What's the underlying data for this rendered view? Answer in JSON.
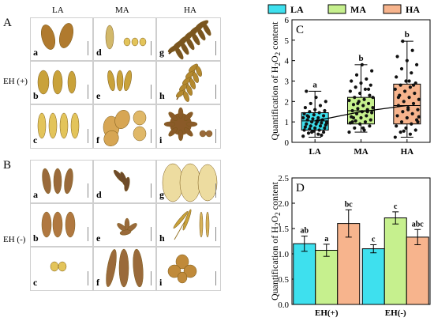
{
  "panelA": {
    "letter": "A",
    "cols": [
      "LA",
      "MA",
      "HA"
    ],
    "rowlabel": "EH (+)",
    "cells": [
      "a",
      "d",
      "g",
      "b",
      "e",
      "h",
      "c",
      "f",
      "i"
    ]
  },
  "panelB": {
    "letter": "B",
    "rowlabel": "EH (-)",
    "cells": [
      "a",
      "d",
      "g",
      "b",
      "e",
      "h",
      "c",
      "f",
      "i"
    ]
  },
  "chart_data": [
    {
      "panel": "C",
      "type": "box",
      "categories": [
        "LA",
        "MA",
        "HA"
      ],
      "ylabel": "Quantification of H2O2 content",
      "ylabel_parts": {
        "a": "Quantification of H",
        "s1": "2",
        "b": "O",
        "s2": "2",
        "c": " content"
      },
      "ylim": [
        0,
        6
      ],
      "yticks": [
        0,
        1,
        2,
        3,
        4,
        5,
        6
      ],
      "legend": [
        {
          "name": "LA",
          "color": "#3ee0ee"
        },
        {
          "name": "MA",
          "color": "#c6f08e"
        },
        {
          "name": "HA",
          "color": "#f7b48d"
        }
      ],
      "boxes": [
        {
          "q1": 0.6,
          "median": 1.05,
          "q3": 1.45,
          "whisker_low": 0.25,
          "whisker_high": 2.5,
          "mean": 1.05,
          "letter": "a"
        },
        {
          "q1": 0.9,
          "median": 1.55,
          "q3": 2.2,
          "whisker_low": 0.5,
          "whisker_high": 3.8,
          "mean": 1.5,
          "letter": "b"
        },
        {
          "q1": 0.9,
          "median": 1.8,
          "q3": 2.85,
          "whisker_low": 0.25,
          "whisker_high": 4.95,
          "mean": 1.8,
          "letter": "b"
        }
      ],
      "points": {
        "LA": [
          0.3,
          0.4,
          0.45,
          0.5,
          0.55,
          0.6,
          0.6,
          0.65,
          0.7,
          0.7,
          0.75,
          0.8,
          0.8,
          0.85,
          0.9,
          0.9,
          0.95,
          1.0,
          1.0,
          1.05,
          1.1,
          1.1,
          1.15,
          1.2,
          1.2,
          1.25,
          1.3,
          1.35,
          1.4,
          1.45,
          1.5,
          1.55,
          1.6,
          1.7,
          1.8,
          1.9,
          2.0,
          2.2,
          2.5,
          0.35,
          0.5,
          0.95,
          1.0,
          1.3
        ],
        "MA": [
          0.5,
          0.6,
          0.7,
          0.8,
          0.9,
          0.95,
          1.0,
          1.05,
          1.1,
          1.2,
          1.25,
          1.3,
          1.4,
          1.45,
          1.5,
          1.55,
          1.6,
          1.65,
          1.7,
          1.8,
          1.85,
          1.9,
          2.0,
          2.05,
          2.1,
          2.2,
          2.3,
          2.4,
          2.5,
          2.6,
          2.7,
          2.8,
          2.9,
          3.0,
          3.1,
          3.3,
          3.5,
          3.8,
          1.0,
          1.5,
          1.9,
          2.2,
          0.7,
          1.2,
          2.6
        ],
        "HA": [
          0.25,
          0.4,
          0.5,
          0.6,
          0.7,
          0.8,
          0.9,
          1.0,
          1.1,
          1.2,
          1.3,
          1.4,
          1.5,
          1.6,
          1.7,
          1.8,
          1.9,
          2.0,
          2.1,
          2.2,
          2.3,
          2.4,
          2.5,
          2.6,
          2.7,
          2.8,
          2.9,
          3.0,
          3.2,
          3.4,
          3.6,
          3.8,
          4.0,
          4.2,
          4.5,
          4.95,
          1.0,
          1.6,
          2.2,
          2.8,
          0.55,
          1.25,
          3.0
        ]
      }
    },
    {
      "panel": "D",
      "type": "bar",
      "categories": [
        "EH(+)",
        "EH(-)"
      ],
      "ylabel": "Quantification of H2O2 content",
      "ylabel_parts": {
        "a": "Quantification of H",
        "s1": "2",
        "b": "O",
        "s2": "2",
        "c": " content"
      },
      "ylim": [
        0,
        2.5
      ],
      "yticks": [
        0.0,
        0.5,
        1.0,
        1.5,
        2.0,
        2.5
      ],
      "series": [
        {
          "name": "LA",
          "color": "#3ee0ee",
          "values": [
            1.2,
            1.1
          ],
          "errors": [
            0.15,
            0.08
          ],
          "letters": [
            "ab",
            "c"
          ]
        },
        {
          "name": "MA",
          "color": "#c6f08e",
          "values": [
            1.07,
            1.71
          ],
          "errors": [
            0.12,
            0.12
          ],
          "letters": [
            "a",
            "c"
          ]
        },
        {
          "name": "HA",
          "color": "#f7b48d",
          "values": [
            1.6,
            1.33
          ],
          "errors": [
            0.27,
            0.15
          ],
          "letters": [
            "bc",
            "abc"
          ]
        }
      ]
    }
  ]
}
